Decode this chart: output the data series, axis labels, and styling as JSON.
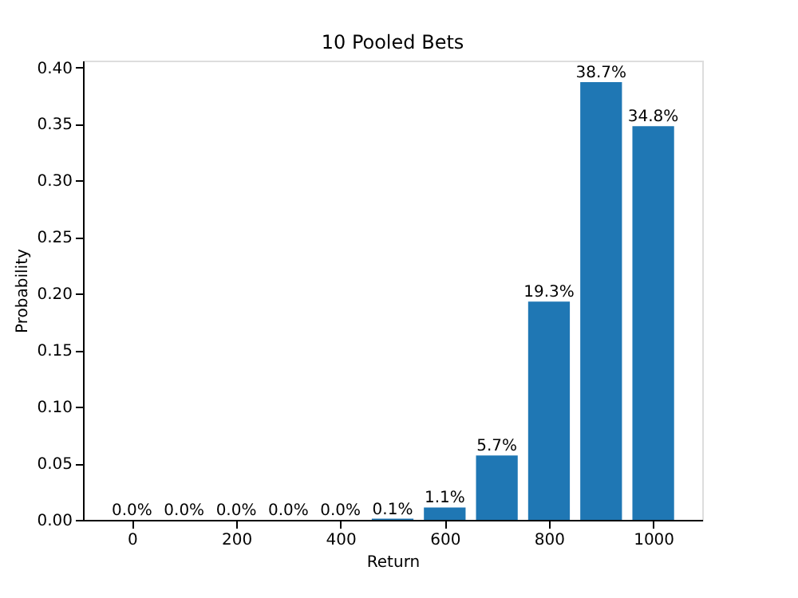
{
  "chart_data": {
    "type": "bar",
    "title": "10 Pooled Bets",
    "xlabel": "Return",
    "ylabel": "Probability",
    "x": [
      0,
      100,
      200,
      300,
      400,
      500,
      600,
      700,
      800,
      900,
      1000
    ],
    "values": [
      0.0,
      0.0,
      0.0,
      0.0,
      0.0,
      0.001,
      0.011,
      0.057,
      0.193,
      0.387,
      0.348
    ],
    "value_labels": [
      "0.0%",
      "0.0%",
      "0.0%",
      "0.0%",
      "0.0%",
      "0.1%",
      "1.1%",
      "5.7%",
      "19.3%",
      "38.7%",
      "34.8%"
    ],
    "color": "#1f77b4",
    "xlim": [
      -94,
      1094
    ],
    "xticks": [
      0,
      200,
      400,
      600,
      800,
      1000
    ],
    "ylim": [
      0,
      0.406
    ],
    "yticks": [
      {
        "value": 0,
        "label": "0.00"
      },
      0.05,
      {
        "value": 0.1,
        "label": "0.10"
      },
      0.15,
      {
        "value": 0.2,
        "label": "0.20"
      },
      0.25,
      {
        "value": 0.3,
        "label": "0.30"
      },
      0.35,
      {
        "value": 0.4,
        "label": "0.40"
      }
    ],
    "grid": false
  }
}
